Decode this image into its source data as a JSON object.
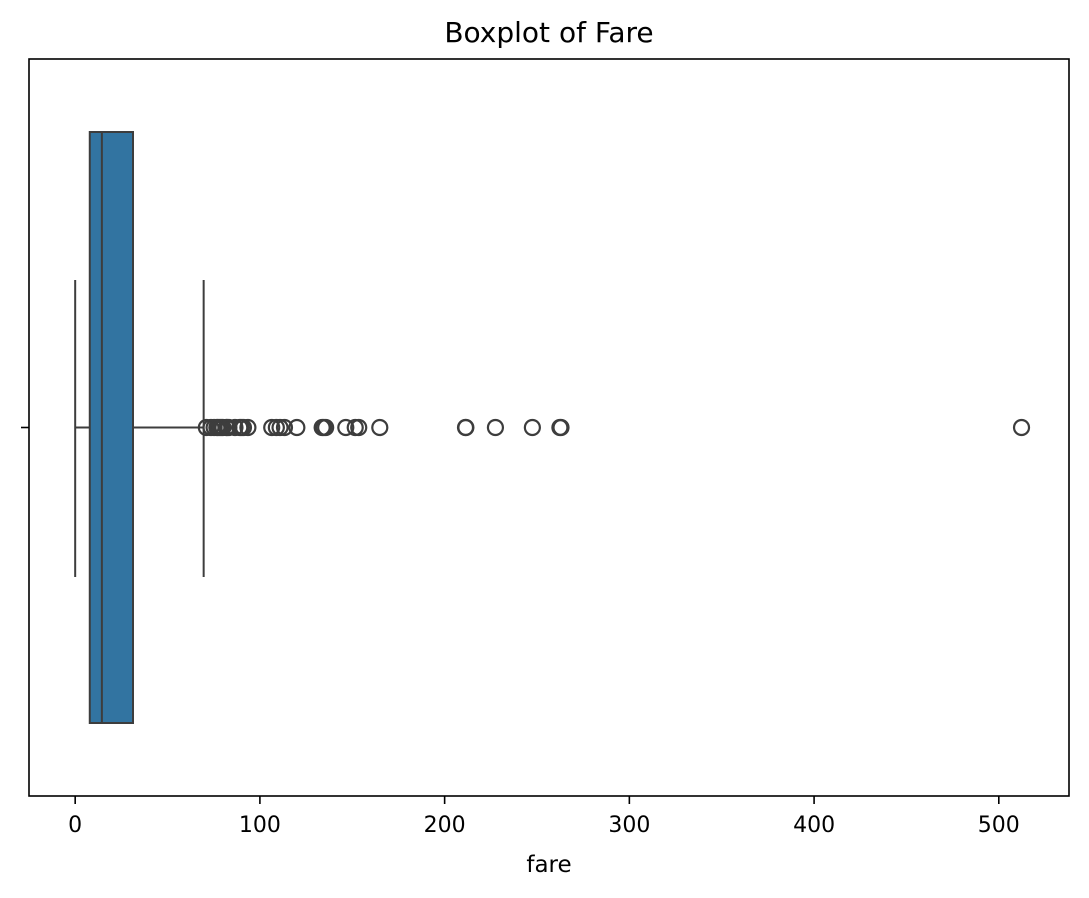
{
  "chart_data": {
    "type": "boxplot",
    "title": "Boxplot of Fare",
    "xlabel": "fare",
    "ylabel": "",
    "orientation": "horizontal",
    "xlim": [
      -25,
      538
    ],
    "xticks": [
      0,
      100,
      200,
      300,
      400,
      500
    ],
    "xtick_labels": [
      "0",
      "100",
      "200",
      "300",
      "400",
      "500"
    ],
    "grid": false,
    "box": {
      "whisker_low": 0,
      "q1": 7.9,
      "median": 14.45,
      "q3": 31.3,
      "whisker_high": 69.55,
      "color": "#3274a1",
      "edge_color": "#3d3d3d"
    },
    "outliers": [
      71.0,
      73.5,
      75.2,
      76.7,
      77.3,
      78.3,
      79.2,
      80.0,
      81.9,
      82.2,
      83.2,
      86.5,
      89.1,
      90.0,
      91.1,
      93.5,
      106.4,
      108.9,
      110.9,
      113.3,
      120.0,
      133.7,
      134.5,
      135.6,
      146.5,
      151.6,
      153.5,
      164.9,
      211.3,
      211.5,
      227.5,
      247.5,
      262.4,
      263.0,
      512.3
    ]
  }
}
